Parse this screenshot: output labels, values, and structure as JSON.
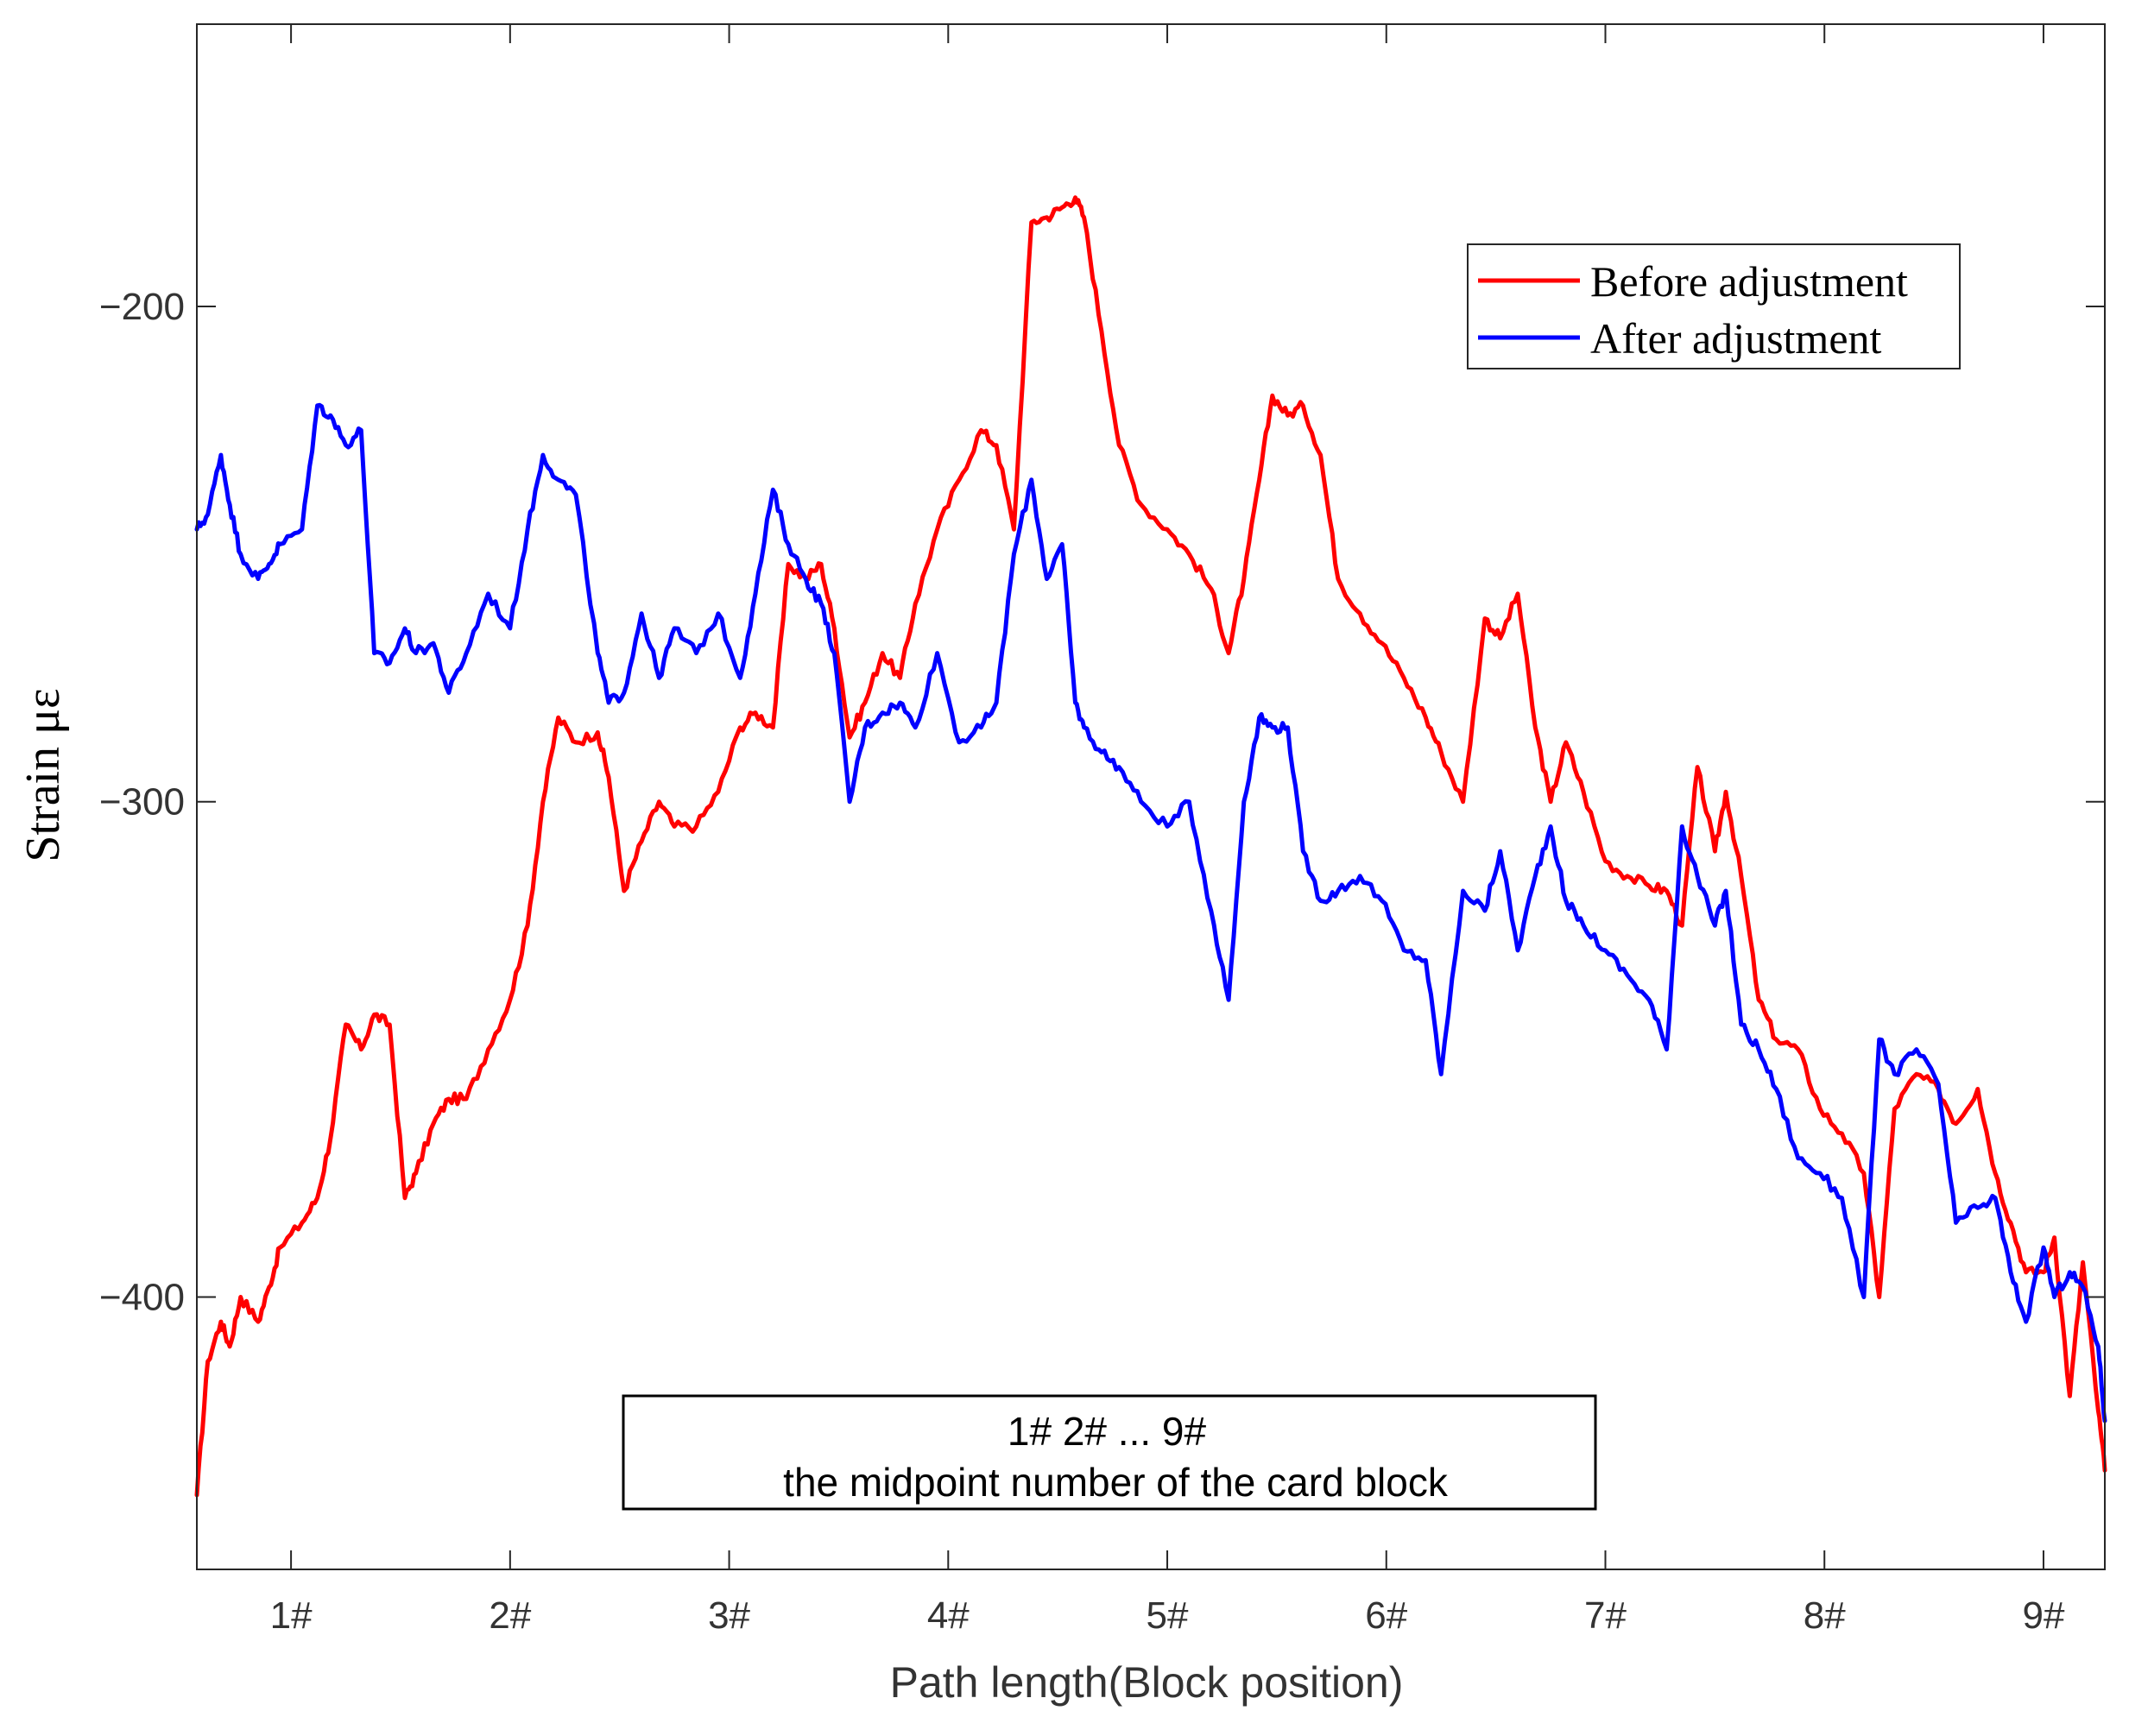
{
  "chart_data": {
    "type": "line",
    "title": "",
    "xlabel": "Path length(Block position)",
    "ylabel": "Strain με",
    "xlim": [
      0.57,
      9.28
    ],
    "ylim": [
      -455,
      -143
    ],
    "x_ticks": [
      1,
      2,
      3,
      4,
      5,
      6,
      7,
      8,
      9
    ],
    "x_tick_labels": [
      "1#",
      "2#",
      "3#",
      "4#",
      "5#",
      "6#",
      "7#",
      "8#",
      "9#"
    ],
    "y_ticks": [
      -200,
      -300,
      -400
    ],
    "y_tick_labels": [
      "−200",
      "−300",
      "−400"
    ],
    "grid": false,
    "legend_position": "top-right",
    "series": [
      {
        "name": "Before adjustment",
        "color": "#ff0000",
        "x": [
          0.57,
          0.62,
          0.68,
          0.72,
          0.77,
          0.85,
          0.9,
          0.95,
          1.05,
          1.12,
          1.18,
          1.25,
          1.32,
          1.38,
          1.45,
          1.52,
          1.57,
          1.65,
          1.72,
          1.8,
          1.9,
          2.0,
          2.08,
          2.15,
          2.22,
          2.3,
          2.4,
          2.45,
          2.52,
          2.6,
          2.68,
          2.75,
          2.85,
          2.95,
          3.05,
          3.12,
          3.2,
          3.27,
          3.35,
          3.42,
          3.48,
          3.55,
          3.62,
          3.7,
          3.78,
          3.85,
          3.95,
          4.05,
          4.15,
          4.22,
          4.3,
          4.38,
          4.45,
          4.52,
          4.58,
          4.62,
          4.7,
          4.78,
          4.88,
          5.0,
          5.1,
          5.2,
          5.28,
          5.35,
          5.42,
          5.48,
          5.55,
          5.62,
          5.7,
          5.78,
          5.88,
          5.98,
          6.08,
          6.18,
          6.25,
          6.35,
          6.45,
          6.52,
          6.6,
          6.68,
          6.75,
          6.82,
          6.9,
          7.0,
          7.1,
          7.2,
          7.28,
          7.35,
          7.42,
          7.5,
          7.55,
          7.62,
          7.7,
          7.78,
          7.88,
          7.98,
          8.08,
          8.18,
          8.25,
          8.32,
          8.42,
          8.52,
          8.6,
          8.7,
          8.78,
          8.85,
          8.92,
          9.0,
          9.05,
          9.12,
          9.18,
          9.25,
          9.28
        ],
        "y": [
          -440,
          -413,
          -405,
          -410,
          -400,
          -405,
          -398,
          -390,
          -385,
          -380,
          -368,
          -345,
          -350,
          -343,
          -345,
          -380,
          -375,
          -365,
          -360,
          -360,
          -350,
          -340,
          -325,
          -300,
          -283,
          -288,
          -286,
          -295,
          -318,
          -308,
          -300,
          -305,
          -305,
          -298,
          -285,
          -282,
          -285,
          -252,
          -255,
          -252,
          -265,
          -287,
          -280,
          -270,
          -275,
          -260,
          -245,
          -235,
          -225,
          -228,
          -245,
          -183,
          -182,
          -180,
          -178,
          -182,
          -205,
          -228,
          -240,
          -245,
          -250,
          -257,
          -270,
          -255,
          -235,
          -218,
          -222,
          -220,
          -230,
          -255,
          -262,
          -268,
          -275,
          -283,
          -290,
          -300,
          -263,
          -267,
          -258,
          -285,
          -300,
          -288,
          -298,
          -312,
          -315,
          -317,
          -318,
          -325,
          -293,
          -310,
          -298,
          -315,
          -340,
          -348,
          -350,
          -362,
          -367,
          -375,
          -400,
          -362,
          -355,
          -358,
          -365,
          -358,
          -375,
          -385,
          -395,
          -395,
          -388,
          -420,
          -393,
          -423,
          -435
        ]
      },
      {
        "name": "After adjustment",
        "color": "#0000ff",
        "x": [
          0.57,
          0.62,
          0.68,
          0.72,
          0.77,
          0.85,
          0.9,
          0.95,
          1.05,
          1.12,
          1.18,
          1.25,
          1.32,
          1.38,
          1.45,
          1.52,
          1.57,
          1.65,
          1.72,
          1.8,
          1.9,
          2.0,
          2.08,
          2.15,
          2.22,
          2.3,
          2.4,
          2.45,
          2.52,
          2.6,
          2.68,
          2.75,
          2.85,
          2.95,
          3.05,
          3.12,
          3.2,
          3.27,
          3.35,
          3.42,
          3.48,
          3.55,
          3.62,
          3.7,
          3.78,
          3.85,
          3.95,
          4.05,
          4.15,
          4.22,
          4.3,
          4.38,
          4.45,
          4.52,
          4.58,
          4.62,
          4.7,
          4.78,
          4.88,
          5.0,
          5.1,
          5.2,
          5.28,
          5.35,
          5.42,
          5.48,
          5.55,
          5.62,
          5.7,
          5.78,
          5.88,
          5.98,
          6.08,
          6.18,
          6.25,
          6.35,
          6.45,
          6.52,
          6.6,
          6.68,
          6.75,
          6.82,
          6.9,
          7.0,
          7.1,
          7.2,
          7.28,
          7.35,
          7.42,
          7.5,
          7.55,
          7.62,
          7.7,
          7.78,
          7.88,
          7.98,
          8.08,
          8.18,
          8.25,
          8.32,
          8.42,
          8.52,
          8.6,
          8.7,
          8.78,
          8.85,
          8.92,
          9.0,
          9.05,
          9.12,
          9.18,
          9.25,
          9.28
        ],
        "y": [
          -245,
          -242,
          -230,
          -240,
          -250,
          -255,
          -252,
          -248,
          -245,
          -220,
          -222,
          -228,
          -225,
          -270,
          -272,
          -265,
          -270,
          -268,
          -278,
          -270,
          -258,
          -265,
          -245,
          -230,
          -235,
          -238,
          -270,
          -280,
          -278,
          -262,
          -275,
          -265,
          -270,
          -262,
          -275,
          -258,
          -237,
          -248,
          -255,
          -260,
          -270,
          -300,
          -285,
          -282,
          -280,
          -285,
          -270,
          -288,
          -285,
          -280,
          -250,
          -235,
          -255,
          -248,
          -280,
          -285,
          -290,
          -293,
          -300,
          -305,
          -300,
          -322,
          -340,
          -300,
          -283,
          -285,
          -285,
          -310,
          -320,
          -318,
          -315,
          -320,
          -330,
          -332,
          -355,
          -318,
          -322,
          -310,
          -330,
          -315,
          -305,
          -320,
          -325,
          -330,
          -335,
          -340,
          -350,
          -305,
          -315,
          -325,
          -318,
          -345,
          -350,
          -358,
          -372,
          -375,
          -380,
          -400,
          -348,
          -355,
          -350,
          -357,
          -385,
          -382,
          -380,
          -395,
          -405,
          -390,
          -400,
          -395,
          -398,
          -410,
          -425
        ]
      }
    ],
    "annotation": {
      "line1": "1# 2# ... 9#",
      "line2": "the midpoint number of the card block"
    }
  }
}
